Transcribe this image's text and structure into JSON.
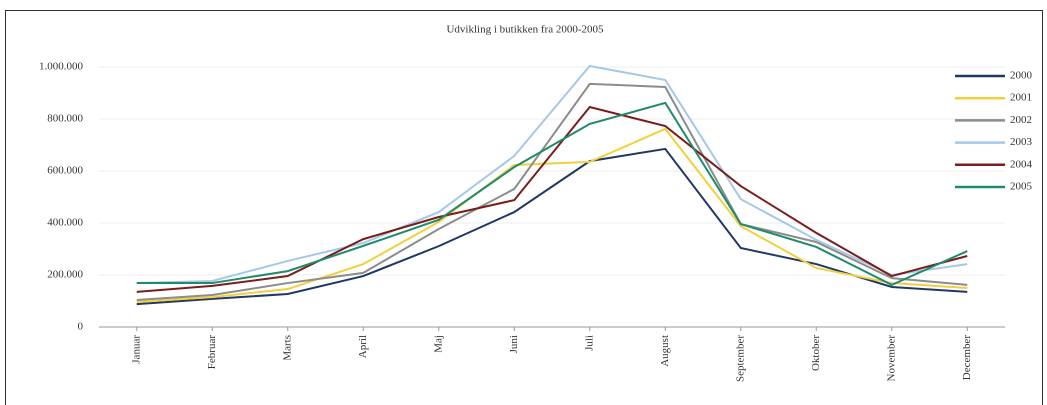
{
  "chart_data": {
    "type": "line",
    "title": "Udvikling i butikken fra 2000-2005",
    "categories": [
      "Januar",
      "Februar",
      "Marts",
      "April",
      "Maj",
      "Juni",
      "Juli",
      "August",
      "September",
      "Oktober",
      "November",
      "December"
    ],
    "series": [
      {
        "name": "2000",
        "color": "#1f3864",
        "values": [
          88000,
          108000,
          127000,
          196000,
          311000,
          442000,
          638000,
          685000,
          304000,
          242000,
          154000,
          135000
        ]
      },
      {
        "name": "2001",
        "color": "#f2cf3c",
        "values": [
          96000,
          115000,
          146000,
          242000,
          404000,
          623000,
          635000,
          762000,
          388000,
          227000,
          169000,
          150000
        ]
      },
      {
        "name": "2002",
        "color": "#8c8c8c",
        "values": [
          104000,
          123000,
          169000,
          208000,
          377000,
          531000,
          935000,
          923000,
          396000,
          327000,
          188000,
          162000
        ]
      },
      {
        "name": "2003",
        "color": "#a6c8e8",
        "values": [
          169000,
          177000,
          254000,
          323000,
          442000,
          658000,
          1004000,
          950000,
          492000,
          335000,
          200000,
          242000
        ]
      },
      {
        "name": "2004",
        "color": "#7b1c1c",
        "values": [
          135000,
          158000,
          196000,
          338000,
          423000,
          488000,
          846000,
          773000,
          542000,
          362000,
          196000,
          273000
        ]
      },
      {
        "name": "2005",
        "color": "#1e8c6a",
        "values": [
          169000,
          169000,
          215000,
          312000,
          412000,
          615000,
          781000,
          862000,
          396000,
          308000,
          162000,
          292000
        ]
      }
    ],
    "ylim": [
      0,
      1000000
    ],
    "yticks": [
      0,
      {
        "value": 200000,
        "label": "200.000"
      },
      {
        "value": 400000,
        "label": "400.000"
      },
      {
        "value": 600000,
        "label": "600.000"
      },
      {
        "value": 800000,
        "label": "800.000"
      },
      {
        "value": 1000000,
        "label": "1.000.000"
      }
    ],
    "grid": true,
    "legend": "right"
  }
}
